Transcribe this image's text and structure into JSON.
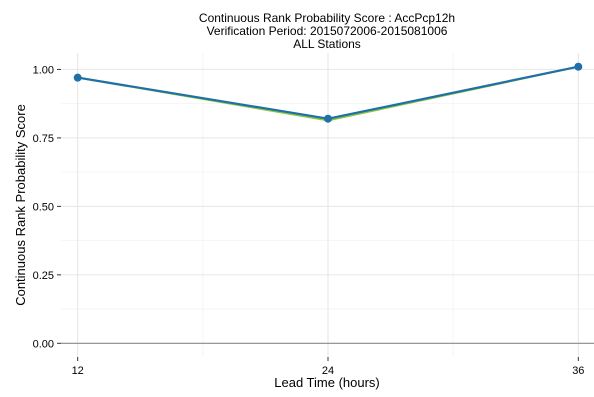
{
  "chart_data": {
    "type": "line",
    "title_lines": [
      "Continuous Rank Probability Score : AccPcp12h",
      "Verification Period: 2015072006-2015081006",
      "ALL Stations"
    ],
    "xlabel": "Lead Time (hours)",
    "ylabel": "Continuous Rank Probability Score",
    "x_ticks": [
      12,
      24,
      36
    ],
    "y_ticks": [
      0.0,
      0.25,
      0.5,
      0.75,
      1.0
    ],
    "y_tick_labels": [
      "0.00",
      "0.25",
      "0.50",
      "0.75",
      "1.00"
    ],
    "xlim": [
      11.2,
      36.8
    ],
    "ylim": [
      -0.05,
      1.06
    ],
    "grid": true,
    "zero_line": true,
    "series": [
      {
        "color": "#8cc63f",
        "marker": false,
        "x": [
          12,
          24,
          36
        ],
        "y": [
          0.97,
          0.814,
          1.01
        ]
      },
      {
        "color": "#1f6fa8",
        "marker": true,
        "x": [
          12,
          24,
          36
        ],
        "y": [
          0.97,
          0.82,
          1.01
        ]
      }
    ]
  }
}
